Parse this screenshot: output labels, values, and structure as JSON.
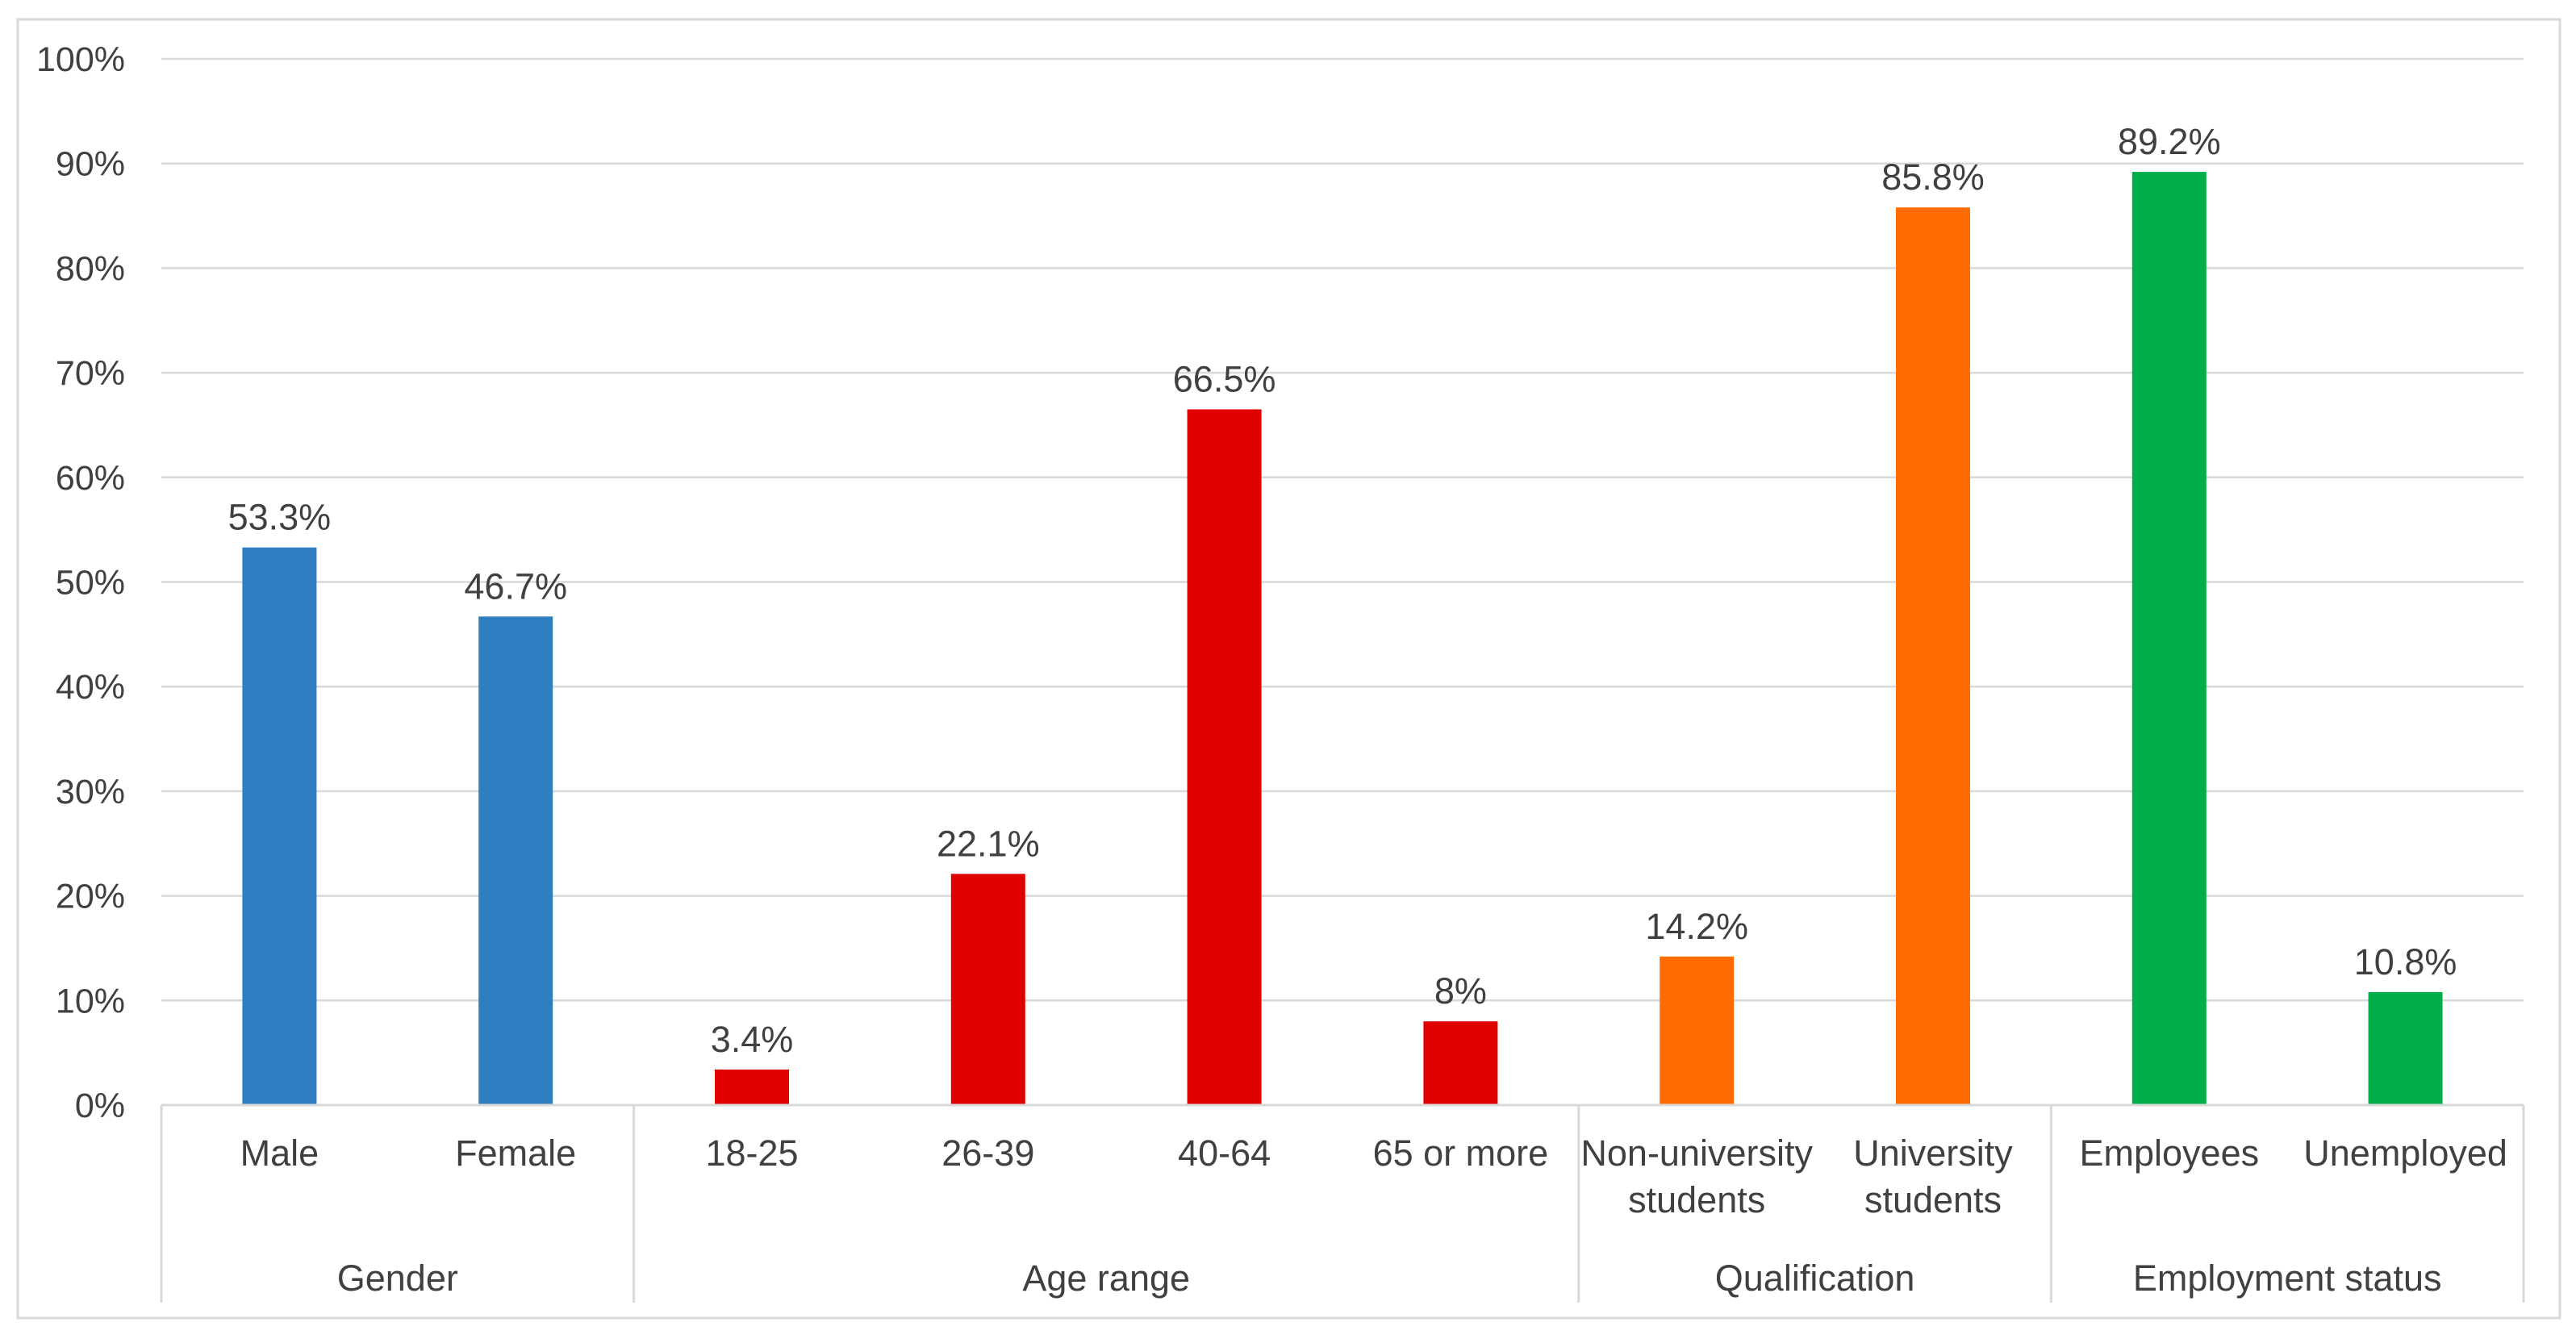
{
  "chart_data": {
    "type": "bar",
    "title": "",
    "xlabel": "",
    "ylabel": "",
    "ylim": [
      0,
      100
    ],
    "y_ticks": [
      {
        "value": 0,
        "label": "0%"
      },
      {
        "value": 10,
        "label": "10%"
      },
      {
        "value": 20,
        "label": "20%"
      },
      {
        "value": 30,
        "label": "30%"
      },
      {
        "value": 40,
        "label": "40%"
      },
      {
        "value": 50,
        "label": "50%"
      },
      {
        "value": 60,
        "label": "60%"
      },
      {
        "value": 70,
        "label": "70%"
      },
      {
        "value": 80,
        "label": "80%"
      },
      {
        "value": 90,
        "label": "90%"
      },
      {
        "value": 100,
        "label": "100%"
      }
    ],
    "grid": true,
    "legend": "none",
    "groups": [
      {
        "name": "Gender",
        "color": "#2E7EC1",
        "bars": [
          {
            "category": [
              "Male"
            ],
            "value": 53.3,
            "label": "53.3%"
          },
          {
            "category": [
              "Female"
            ],
            "value": 46.7,
            "label": "46.7%"
          }
        ]
      },
      {
        "name": "Age range",
        "color": "#E00000",
        "bars": [
          {
            "category": [
              "18-25"
            ],
            "value": 3.4,
            "label": "3.4%"
          },
          {
            "category": [
              "26-39"
            ],
            "value": 22.1,
            "label": "22.1%"
          },
          {
            "category": [
              "40-64"
            ],
            "value": 66.5,
            "label": "66.5%"
          },
          {
            "category": [
              "65 or more"
            ],
            "value": 8,
            "label": "8%"
          }
        ]
      },
      {
        "name": "Qualification",
        "color": "#FF6D00",
        "bars": [
          {
            "category": [
              "Non-university",
              "students"
            ],
            "value": 14.2,
            "label": "14.2%"
          },
          {
            "category": [
              "University",
              "students"
            ],
            "value": 85.8,
            "label": "85.8%"
          }
        ]
      },
      {
        "name": "Employment status",
        "color": "#00AF4A",
        "bars": [
          {
            "category": [
              "Employees"
            ],
            "value": 89.2,
            "label": "89.2%"
          },
          {
            "category": [
              "Unemployed"
            ],
            "value": 10.8,
            "label": "10.8%"
          }
        ]
      }
    ]
  }
}
